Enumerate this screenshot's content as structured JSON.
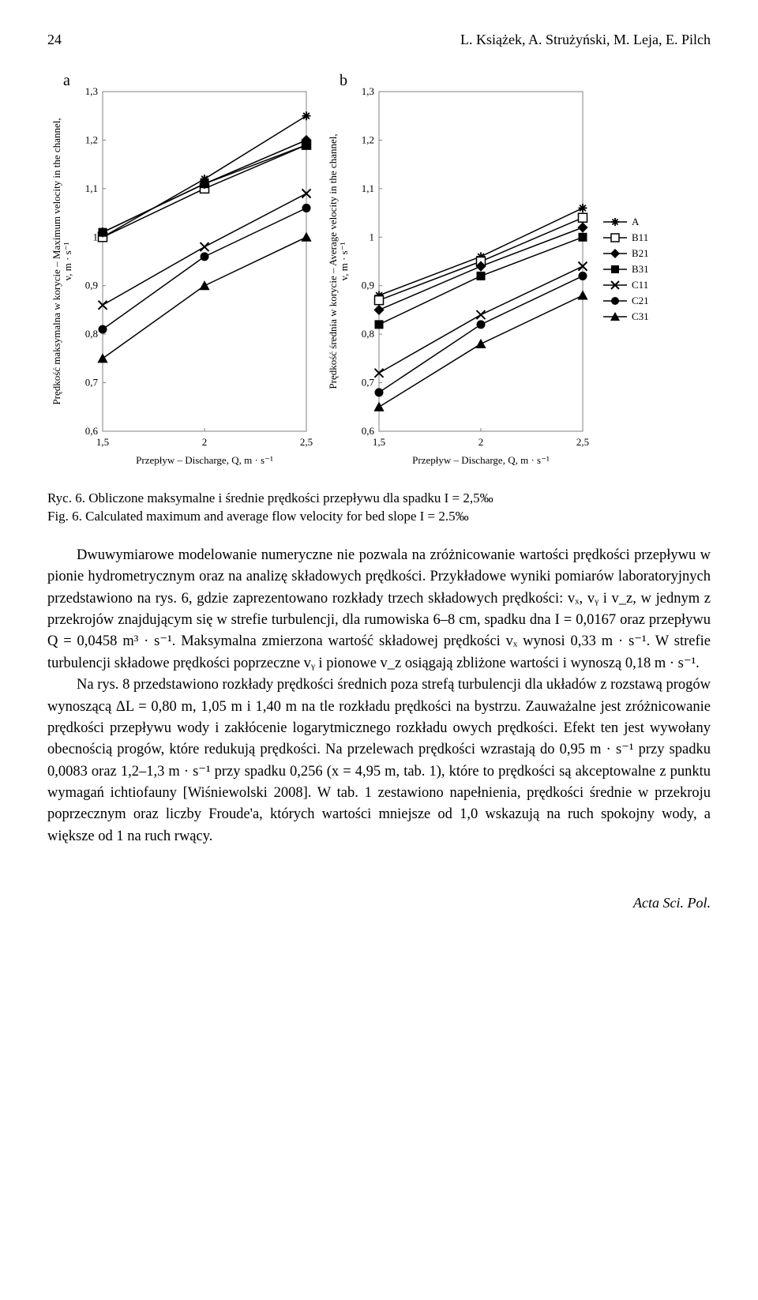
{
  "header": {
    "page_number": "24",
    "authors": "L. Książek, A. Strużyński, M. Leja, E. Pilch"
  },
  "charts": {
    "panel_a": {
      "letter": "a"
    },
    "panel_b": {
      "letter": "b"
    },
    "common": {
      "xlabel": "Przepływ – Discharge, Q, m · s⁻¹",
      "ylabel_a": "Prędkość maksymalna w korycie – Maximum velocity in the channel,\nv, m · s⁻¹",
      "ylabel_b": "Prędkość średnia w korycie – Average velocity in the channel,\nv, m · s⁻¹",
      "xlim": [
        1.5,
        2.5
      ],
      "ylim": [
        0.6,
        1.3
      ],
      "xticks": [
        1.5,
        2,
        2.5
      ],
      "xtick_labels": [
        "1,5",
        "2",
        "2,5"
      ],
      "yticks": [
        0.6,
        0.7,
        0.8,
        0.9,
        1.0,
        1.1,
        1.2,
        1.3
      ],
      "ytick_labels": [
        "0,6",
        "0,7",
        "0,8",
        "0,9",
        "1",
        "1,1",
        "1,2",
        "1,3"
      ],
      "tick_fontsize": 13,
      "label_fontsize": 13,
      "line_color": "#000000",
      "line_width": 1.5,
      "marker_size": 7,
      "border_color": "#808080",
      "border_width": 1
    },
    "legend": {
      "items": [
        {
          "label": "A",
          "marker": "asterisk"
        },
        {
          "label": "B11",
          "marker": "square-open"
        },
        {
          "label": "B21",
          "marker": "diamond"
        },
        {
          "label": "B31",
          "marker": "square"
        },
        {
          "label": "C11",
          "marker": "x-mark"
        },
        {
          "label": "C21",
          "marker": "circle"
        },
        {
          "label": "C31",
          "marker": "triangle"
        }
      ],
      "fontsize": 13
    },
    "series_a": {
      "A": {
        "x": [
          1.5,
          2,
          2.5
        ],
        "y": [
          1.0,
          1.12,
          1.25
        ],
        "marker": "asterisk"
      },
      "B11": {
        "x": [
          1.5,
          2,
          2.5
        ],
        "y": [
          1.0,
          1.1,
          1.19
        ],
        "marker": "square-open"
      },
      "B21": {
        "x": [
          1.5,
          2,
          2.5
        ],
        "y": [
          1.01,
          1.11,
          1.2
        ],
        "marker": "diamond"
      },
      "B31": {
        "x": [
          1.5,
          2,
          2.5
        ],
        "y": [
          1.01,
          1.11,
          1.19
        ],
        "marker": "square"
      },
      "C11": {
        "x": [
          1.5,
          2,
          2.5
        ],
        "y": [
          0.86,
          0.98,
          1.09
        ],
        "marker": "x-mark"
      },
      "C21": {
        "x": [
          1.5,
          2,
          2.5
        ],
        "y": [
          0.81,
          0.96,
          1.06
        ],
        "marker": "circle"
      },
      "C31": {
        "x": [
          1.5,
          2,
          2.5
        ],
        "y": [
          0.75,
          0.9,
          1.0
        ],
        "marker": "triangle"
      }
    },
    "series_b": {
      "A": {
        "x": [
          1.5,
          2,
          2.5
        ],
        "y": [
          0.88,
          0.96,
          1.06
        ],
        "marker": "asterisk"
      },
      "B11": {
        "x": [
          1.5,
          2,
          2.5
        ],
        "y": [
          0.87,
          0.95,
          1.04
        ],
        "marker": "square-open"
      },
      "B21": {
        "x": [
          1.5,
          2,
          2.5
        ],
        "y": [
          0.85,
          0.94,
          1.02
        ],
        "marker": "diamond"
      },
      "B31": {
        "x": [
          1.5,
          2,
          2.5
        ],
        "y": [
          0.82,
          0.92,
          1.0
        ],
        "marker": "square"
      },
      "C11": {
        "x": [
          1.5,
          2,
          2.5
        ],
        "y": [
          0.72,
          0.84,
          0.94
        ],
        "marker": "x-mark"
      },
      "C21": {
        "x": [
          1.5,
          2,
          2.5
        ],
        "y": [
          0.68,
          0.82,
          0.92
        ],
        "marker": "circle"
      },
      "C31": {
        "x": [
          1.5,
          2,
          2.5
        ],
        "y": [
          0.65,
          0.78,
          0.88
        ],
        "marker": "triangle"
      }
    }
  },
  "caption": {
    "line1": "Ryc. 6. Obliczone maksymalne i średnie prędkości przepływu dla spadku I = 2,5‰",
    "line2": "Fig. 6. Calculated maximum and average flow velocity for bed slope I = 2.5‰"
  },
  "paragraphs": {
    "p1": "Dwuwymiarowe modelowanie numeryczne nie pozwala na zróżnicowanie wartości prędkości przepływu w pionie hydrometrycznym oraz na analizę składowych prędkości. Przykładowe wyniki pomiarów laboratoryjnych przedstawiono na rys. 6, gdzie zaprezentowano rozkłady trzech składowych prędkości: vₓ, vᵧ i v_z, w jednym z przekrojów znajdującym się w strefie turbulencji, dla rumowiska 6–8 cm, spadku dna I = 0,0167 oraz przepływu Q = 0,0458 m³ · s⁻¹. Maksymalna zmierzona wartość składowej prędkości vₓ wynosi 0,33 m · s⁻¹. W strefie turbulencji składowe prędkości poprzeczne vᵧ i pionowe v_z osiągają zbliżone wartości i wynoszą 0,18 m · s⁻¹.",
    "p2": "Na rys. 8 przedstawiono rozkłady prędkości średnich poza strefą turbulencji dla układów z rozstawą progów wynoszącą ΔL = 0,80 m, 1,05 m i 1,40 m na tle rozkładu prędkości na bystrzu. Zauważalne jest zróżnicowanie prędkości przepływu wody i zakłócenie logarytmicznego rozkładu owych prędkości. Efekt ten jest wywołany obecnością progów, które redukują prędkości. Na przelewach prędkości wzrastają do 0,95 m · s⁻¹ przy spadku 0,0083 oraz 1,2–1,3 m · s⁻¹ przy spadku 0,256 (x = 4,95 m, tab. 1), które to prędkości są akceptowalne z punktu wymagań ichtiofauny [Wiśniewolski 2008]. W tab. 1 zestawiono napełnienia, prędkości średnie w przekroju poprzecznym oraz liczby Froude'a, których wartości mniejsze od 1,0 wskazują na ruch spokojny wody, a większe od 1 na ruch rwący."
  },
  "footer": {
    "text": "Acta Sci. Pol."
  }
}
